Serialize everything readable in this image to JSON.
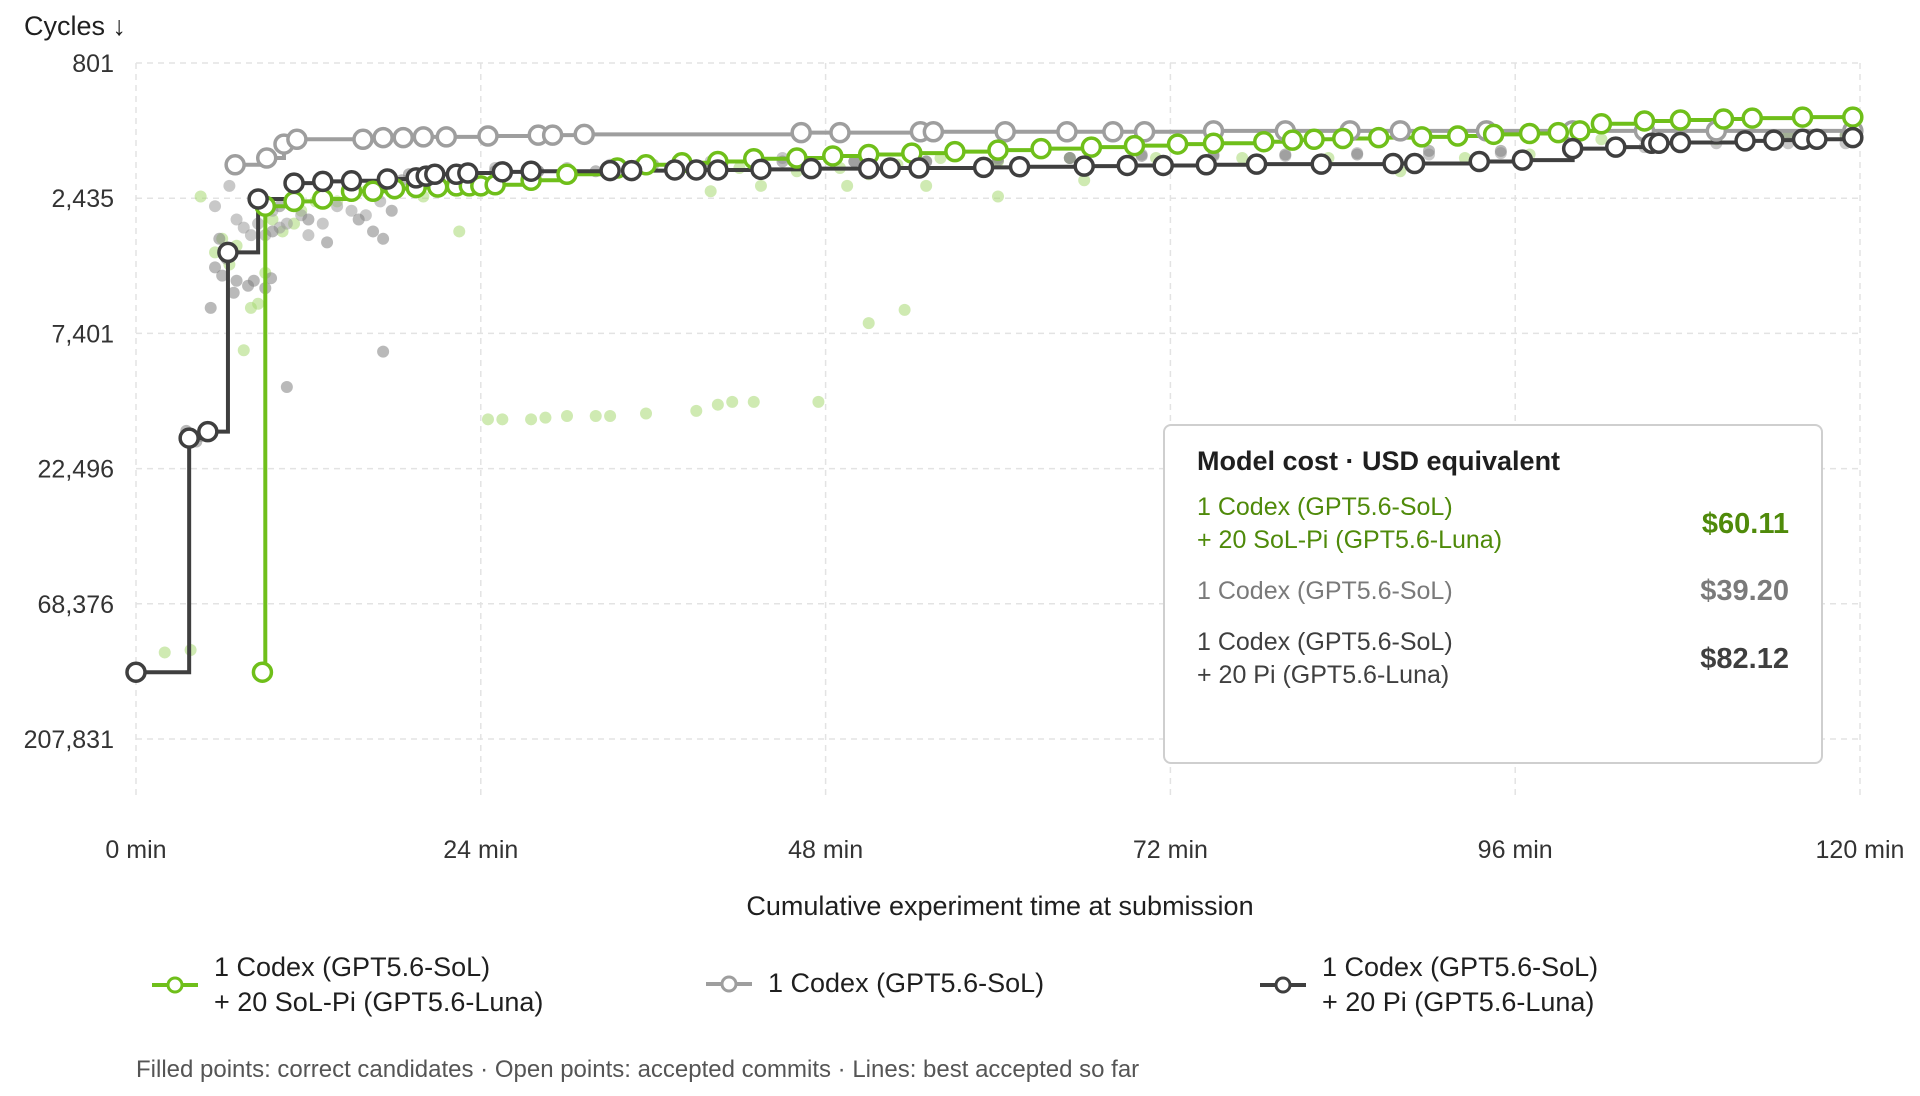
{
  "chart_data": {
    "type": "scatter",
    "ylabel": "Cycles ↓",
    "xlabel": "Cumulative experiment time at submission",
    "x_unit": "min",
    "xlim": [
      0,
      120
    ],
    "ylim": [
      801,
      207831
    ],
    "yscale": "log",
    "x_ticks": [
      0,
      24,
      48,
      72,
      96,
      120
    ],
    "x_tick_labels": [
      "0 min",
      "24 min",
      "48 min",
      "72 min",
      "96 min",
      "120 min"
    ],
    "y_ticks": [
      801,
      2435,
      7401,
      22496,
      68376,
      207831
    ],
    "y_tick_labels": [
      "801",
      "2,435",
      "7,401",
      "22,496",
      "68,376",
      "207,831"
    ],
    "grid": true,
    "legend_position": "bottom",
    "series": [
      {
        "name": "1 Codex (GPT5.6-SoL) + 20 SoL-Pi (GPT5.6-Luna)",
        "name_lines": [
          "1 Codex (GPT5.6-SoL)",
          "+ 20 SoL-Pi (GPT5.6-Luna)"
        ],
        "color": "#6fbf1a",
        "candidates": [
          [
            2,
            102000
          ],
          [
            3.8,
            100000
          ],
          [
            4.5,
            2400
          ],
          [
            5.5,
            3800
          ],
          [
            6,
            3400
          ],
          [
            6.5,
            4200
          ],
          [
            7,
            3600
          ],
          [
            7.5,
            8500
          ],
          [
            8,
            6000
          ],
          [
            8.5,
            5800
          ],
          [
            9,
            4500
          ],
          [
            9.5,
            2900
          ],
          [
            10.2,
            3200
          ],
          [
            11,
            3000
          ],
          [
            11.5,
            2700
          ],
          [
            12.5,
            2500
          ],
          [
            14,
            2500
          ],
          [
            16,
            2300
          ],
          [
            18,
            2350
          ],
          [
            20,
            2400
          ],
          [
            22.5,
            3200
          ],
          [
            23.5,
            2150
          ],
          [
            24.5,
            15000
          ],
          [
            25.5,
            15000
          ],
          [
            27.5,
            15000
          ],
          [
            28.5,
            14800
          ],
          [
            30,
            14600
          ],
          [
            32,
            14600
          ],
          [
            33,
            14600
          ],
          [
            35.5,
            14300
          ],
          [
            39,
            14000
          ],
          [
            40.5,
            13300
          ],
          [
            41.5,
            13000
          ],
          [
            43,
            13000
          ],
          [
            47.5,
            13000
          ],
          [
            30,
            2050
          ],
          [
            33,
            2000
          ],
          [
            36,
            1850
          ],
          [
            39,
            1900
          ],
          [
            40,
            2300
          ],
          [
            42,
            1900
          ],
          [
            43.5,
            2200
          ],
          [
            46,
            1950
          ],
          [
            49,
            1900
          ],
          [
            51,
            2000
          ],
          [
            53,
            1850
          ],
          [
            56,
            1750
          ],
          [
            60,
            1800
          ],
          [
            65,
            1750
          ],
          [
            71,
            1750
          ],
          [
            77,
            1750
          ],
          [
            83,
            1750
          ],
          [
            89,
            1800
          ],
          [
            92.5,
            1750
          ],
          [
            97,
            1700
          ],
          [
            102,
            1500
          ],
          [
            106,
            1550
          ],
          [
            110,
            1500
          ],
          [
            115,
            1450
          ],
          [
            119,
            1450
          ],
          [
            49.5,
            2200
          ],
          [
            55,
            2200
          ],
          [
            60,
            2400
          ],
          [
            66,
            2100
          ],
          [
            88,
            1950
          ],
          [
            51,
            6800
          ],
          [
            53.5,
            6100
          ]
        ],
        "commits": [
          [
            8.8,
            120000
          ],
          [
            9,
            2600
          ],
          [
            11,
            2500
          ],
          [
            13,
            2450
          ],
          [
            15,
            2300
          ],
          [
            16.5,
            2300
          ],
          [
            18,
            2250
          ],
          [
            19.5,
            2230
          ],
          [
            21,
            2220
          ],
          [
            22.3,
            2200
          ],
          [
            23.2,
            2200
          ],
          [
            24,
            2200
          ],
          [
            25,
            2180
          ],
          [
            27.5,
            2100
          ],
          [
            30,
            2000
          ],
          [
            33.5,
            1900
          ],
          [
            35.5,
            1850
          ],
          [
            38,
            1820
          ],
          [
            40.5,
            1800
          ],
          [
            43,
            1760
          ],
          [
            46,
            1750
          ],
          [
            48.5,
            1720
          ],
          [
            51,
            1700
          ],
          [
            54,
            1680
          ],
          [
            57,
            1660
          ],
          [
            60,
            1640
          ],
          [
            63,
            1620
          ],
          [
            66.5,
            1600
          ],
          [
            69.5,
            1580
          ],
          [
            72.5,
            1560
          ],
          [
            75,
            1550
          ],
          [
            78.5,
            1530
          ],
          [
            80.5,
            1510
          ],
          [
            82,
            1500
          ],
          [
            84,
            1490
          ],
          [
            86.5,
            1480
          ],
          [
            89.5,
            1470
          ],
          [
            92,
            1460
          ],
          [
            94.5,
            1440
          ],
          [
            97,
            1430
          ],
          [
            99,
            1420
          ],
          [
            100.5,
            1400
          ],
          [
            102,
            1320
          ],
          [
            105,
            1290
          ],
          [
            107.5,
            1280
          ],
          [
            110.5,
            1270
          ],
          [
            112.5,
            1260
          ],
          [
            116,
            1250
          ],
          [
            119.5,
            1250
          ]
        ]
      },
      {
        "name": "1 Codex (GPT5.6-SoL)",
        "name_lines": [
          "1 Codex (GPT5.6-SoL)"
        ],
        "color": "#9e9e9e",
        "candidates": [
          [
            5.5,
            2600
          ],
          [
            6.5,
            2200
          ],
          [
            7,
            2900
          ],
          [
            7.5,
            3100
          ],
          [
            8,
            3300
          ],
          [
            8.5,
            3000
          ],
          [
            9,
            3300
          ],
          [
            9.5,
            2700
          ],
          [
            10,
            3100
          ],
          [
            10.5,
            3000
          ],
          [
            11.5,
            2800
          ],
          [
            12,
            3300
          ],
          [
            13,
            3000
          ],
          [
            14,
            2600
          ],
          [
            15,
            2700
          ],
          [
            16,
            2800
          ],
          [
            17,
            2500
          ],
          [
            18,
            2200
          ],
          [
            20,
            2050
          ],
          [
            22,
            2000
          ],
          [
            25,
            1900
          ],
          [
            28,
            1950
          ],
          [
            30,
            1900
          ],
          [
            33,
            1850
          ],
          [
            36,
            1850
          ],
          [
            40,
            1800
          ],
          [
            45,
            1750
          ],
          [
            50,
            1800
          ],
          [
            55,
            1800
          ],
          [
            60,
            1750
          ],
          [
            65,
            1750
          ],
          [
            70,
            1700
          ],
          [
            75,
            1700
          ],
          [
            80,
            1720
          ],
          [
            85,
            1680
          ],
          [
            90,
            1700
          ],
          [
            95,
            1680
          ],
          [
            100,
            1600
          ],
          [
            105,
            1600
          ],
          [
            110,
            1550
          ],
          [
            115,
            1550
          ],
          [
            119,
            1550
          ]
        ],
        "commits": [
          [
            6.9,
            1850
          ],
          [
            9.1,
            1750
          ],
          [
            10.3,
            1560
          ],
          [
            11.2,
            1500
          ],
          [
            15.8,
            1500
          ],
          [
            17.2,
            1480
          ],
          [
            18.6,
            1480
          ],
          [
            20,
            1470
          ],
          [
            21.6,
            1470
          ],
          [
            24.5,
            1460
          ],
          [
            28,
            1450
          ],
          [
            29,
            1450
          ],
          [
            31.2,
            1440
          ],
          [
            46.3,
            1420
          ],
          [
            49,
            1420
          ],
          [
            54.6,
            1410
          ],
          [
            55.5,
            1410
          ],
          [
            60.5,
            1410
          ],
          [
            64.8,
            1410
          ],
          [
            68,
            1410
          ],
          [
            70.2,
            1410
          ],
          [
            75,
            1400
          ],
          [
            80,
            1400
          ],
          [
            84.5,
            1400
          ],
          [
            88,
            1400
          ],
          [
            94,
            1400
          ],
          [
            100,
            1400
          ],
          [
            105,
            1400
          ],
          [
            110,
            1400
          ],
          [
            119.5,
            1400
          ]
        ]
      },
      {
        "name": "1 Codex (GPT5.6-SoL) + 20 Pi (GPT5.6-Luna)",
        "name_lines": [
          "1 Codex (GPT5.6-SoL)",
          "+ 20 Pi (GPT5.6-Luna)"
        ],
        "color": "#3f3f3f",
        "candidates": [
          [
            3.5,
            16500
          ],
          [
            4.2,
            18000
          ],
          [
            4.5,
            17200
          ],
          [
            5,
            17000
          ],
          [
            5.2,
            6000
          ],
          [
            5.5,
            4300
          ],
          [
            5.8,
            3400
          ],
          [
            6,
            4600
          ],
          [
            6.3,
            4000
          ],
          [
            6.8,
            5300
          ],
          [
            7,
            4800
          ],
          [
            7.8,
            5000
          ],
          [
            8.2,
            4800
          ],
          [
            9,
            5100
          ],
          [
            9.4,
            4700
          ],
          [
            9.5,
            3200
          ],
          [
            10,
            2600
          ],
          [
            10.5,
            11500
          ],
          [
            11,
            2600
          ],
          [
            12,
            2900
          ],
          [
            13.3,
            3500
          ],
          [
            15.5,
            2900
          ],
          [
            16.5,
            3200
          ],
          [
            17.2,
            3400
          ],
          [
            17.8,
            2700
          ],
          [
            17.2,
            8600
          ],
          [
            18.5,
            2100
          ],
          [
            19,
            2000
          ],
          [
            22,
            2050
          ],
          [
            25,
            1950
          ],
          [
            28,
            1950
          ],
          [
            32,
            1950
          ],
          [
            35,
            1850
          ],
          [
            40,
            1850
          ],
          [
            45,
            1800
          ],
          [
            50,
            1800
          ],
          [
            55,
            1800
          ],
          [
            60,
            1780
          ],
          [
            65,
            1750
          ],
          [
            70,
            1720
          ],
          [
            75,
            1720
          ],
          [
            80,
            1700
          ],
          [
            85,
            1700
          ],
          [
            90,
            1650
          ],
          [
            95,
            1650
          ],
          [
            100,
            1480
          ],
          [
            105,
            1480
          ],
          [
            110,
            1420
          ],
          [
            115,
            1450
          ],
          [
            119,
            1450
          ]
        ],
        "commits": [
          [
            0,
            120000
          ],
          [
            3.7,
            17500
          ],
          [
            5,
            16600
          ],
          [
            6.4,
            3800
          ],
          [
            8.5,
            2450
          ],
          [
            11,
            2150
          ],
          [
            13,
            2120
          ],
          [
            15,
            2110
          ],
          [
            17.5,
            2080
          ],
          [
            19.5,
            2060
          ],
          [
            20.2,
            2030
          ],
          [
            20.8,
            2000
          ],
          [
            22.3,
            2000
          ],
          [
            23.1,
            1980
          ],
          [
            25.5,
            1960
          ],
          [
            27.5,
            1950
          ],
          [
            33,
            1940
          ],
          [
            34.5,
            1940
          ],
          [
            37.5,
            1930
          ],
          [
            39,
            1930
          ],
          [
            40.5,
            1930
          ],
          [
            43.5,
            1920
          ],
          [
            47,
            1910
          ],
          [
            51,
            1910
          ],
          [
            52.5,
            1900
          ],
          [
            54.5,
            1900
          ],
          [
            59,
            1890
          ],
          [
            61.5,
            1880
          ],
          [
            66,
            1870
          ],
          [
            69,
            1860
          ],
          [
            71.5,
            1860
          ],
          [
            74.5,
            1850
          ],
          [
            78,
            1840
          ],
          [
            82.5,
            1840
          ],
          [
            87.5,
            1830
          ],
          [
            89,
            1830
          ],
          [
            93.5,
            1800
          ],
          [
            96.5,
            1780
          ],
          [
            100,
            1620
          ],
          [
            103,
            1600
          ],
          [
            105.5,
            1550
          ],
          [
            106,
            1550
          ],
          [
            107.5,
            1540
          ],
          [
            112,
            1520
          ],
          [
            114,
            1510
          ],
          [
            116,
            1500
          ],
          [
            117,
            1500
          ],
          [
            119.5,
            1480
          ]
        ]
      }
    ]
  },
  "cost_box": {
    "title": "Model cost · USD equivalent",
    "rows": [
      {
        "lines": [
          "1 Codex (GPT5.6-SoL)",
          "+ 20 SoL-Pi (GPT5.6-Luna)"
        ],
        "value": "$60.11",
        "color": "#4f8a0a"
      },
      {
        "lines": [
          "1 Codex (GPT5.6-SoL)"
        ],
        "value": "$39.20",
        "color": "#7a7a7a"
      },
      {
        "lines": [
          "1 Codex (GPT5.6-SoL)",
          "+ 20 Pi (GPT5.6-Luna)"
        ],
        "value": "$82.12",
        "color": "#3f3f3f"
      }
    ]
  },
  "footnote": "Filled points: correct candidates · Open points: accepted commits · Lines: best accepted so far"
}
